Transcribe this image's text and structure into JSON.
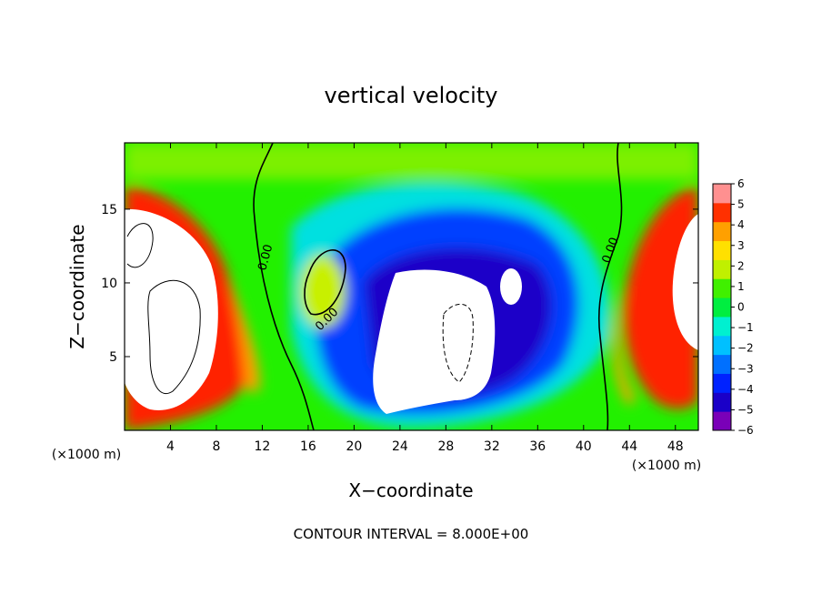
{
  "chart_data": {
    "type": "heatmap",
    "title": "vertical velocity",
    "xlabel": "X−coordinate",
    "ylabel": "Z−coordinate",
    "x_unit_left": "(×1000 m)",
    "x_unit_right": "(×1000 m)",
    "footer": "CONTOUR INTERVAL = 8.000E+00",
    "xlim": [
      0,
      50
    ],
    "ylim": [
      0,
      19.5
    ],
    "x_ticks": [
      "4",
      "8",
      "12",
      "16",
      "20",
      "24",
      "28",
      "32",
      "36",
      "40",
      "44",
      "48"
    ],
    "y_ticks": [
      "5",
      "10",
      "15"
    ],
    "contour_labels": [
      "0.00",
      "0.00",
      "0.00"
    ],
    "colorbar": {
      "vmin": -6,
      "vmax": 6,
      "ticks": [
        "6",
        "5",
        "4",
        "3",
        "2",
        "1",
        "0",
        "−1",
        "−2",
        "−3",
        "−4",
        "−5",
        "−6"
      ],
      "colors": [
        "#7a00b8",
        "#1a00c8",
        "#0022ff",
        "#0070ff",
        "#00c0ff",
        "#00f0d0",
        "#00ee40",
        "#40f000",
        "#c0f000",
        "#ffe000",
        "#ffa000",
        "#ff3000",
        "#ff9090"
      ]
    },
    "grid": false
  }
}
